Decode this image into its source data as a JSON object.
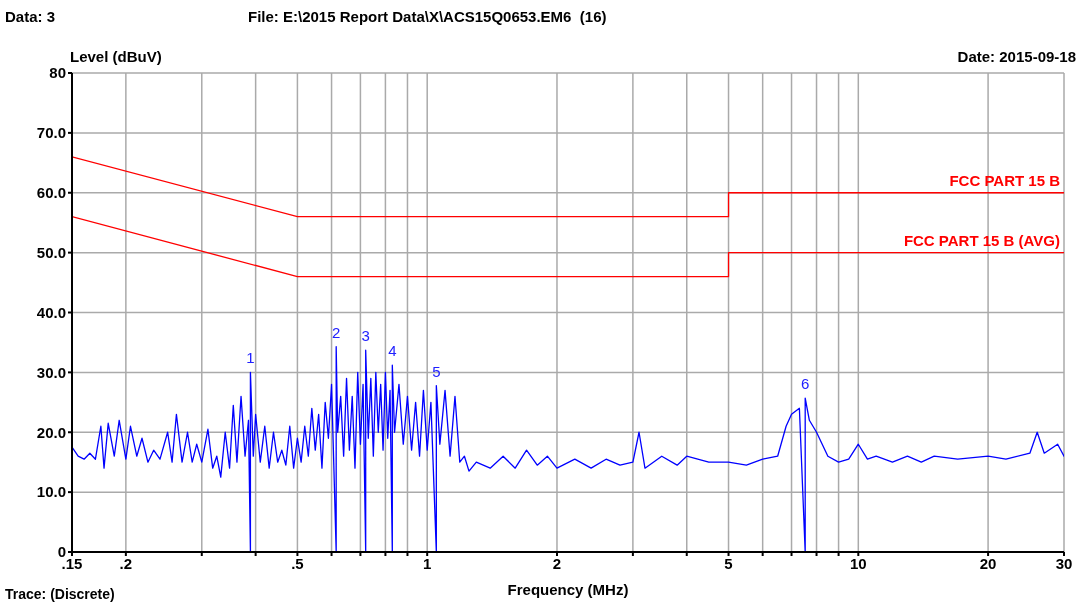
{
  "chart_data": {
    "type": "line",
    "title": "File: E:\\2015 Report Data\\X\\ACS15Q0653.EM6  (16)",
    "xlabel": "Frequency (MHz)",
    "ylabel": "Level (dBuV)",
    "log": "x",
    "grid": true,
    "legend": false,
    "marker": "none",
    "line_style": "solid",
    "xlim": [
      0.15,
      30
    ],
    "xticks": [
      {
        "value": 0.15,
        "label": ".15"
      },
      {
        "value": 0.2,
        "label": ".2"
      },
      {
        "value": 0.3,
        "label": null
      },
      {
        "value": 0.4,
        "label": null
      },
      {
        "value": 0.5,
        "label": ".5"
      },
      {
        "value": 0.6,
        "label": null
      },
      {
        "value": 0.7,
        "label": null
      },
      {
        "value": 0.8,
        "label": null
      },
      {
        "value": 0.9,
        "label": null
      },
      1,
      2,
      {
        "value": 3,
        "label": null
      },
      {
        "value": 4,
        "label": null
      },
      5,
      {
        "value": 6,
        "label": null
      },
      {
        "value": 7,
        "label": null
      },
      {
        "value": 8,
        "label": null
      },
      {
        "value": 9,
        "label": null
      },
      10,
      20,
      30
    ],
    "ylim": [
      0,
      80
    ],
    "yticks": [
      0,
      {
        "value": 10,
        "label": "10.0"
      },
      {
        "value": 20,
        "label": "20.0"
      },
      {
        "value": 30,
        "label": "30.0"
      },
      {
        "value": 40,
        "label": "40.0"
      },
      {
        "value": 50,
        "label": "50.0"
      },
      {
        "value": 60,
        "label": "60.0"
      },
      {
        "value": 70,
        "label": "70.0"
      },
      80
    ],
    "series": [
      {
        "name": "FCC PART 15 B",
        "color": "#ff0000",
        "x": [
          0.15,
          0.5,
          5,
          5,
          30
        ],
        "values": [
          66,
          56,
          56,
          60,
          60
        ]
      },
      {
        "name": "FCC PART 15 B (AVG)",
        "color": "#ff0000",
        "x": [
          0.15,
          0.5,
          5,
          5,
          30
        ],
        "values": [
          56,
          46,
          46,
          50,
          50
        ]
      },
      {
        "color": "#0000ff",
        "x": [
          0.15,
          0.155,
          0.16,
          0.165,
          0.17,
          0.175,
          0.178,
          0.182,
          0.188,
          0.193,
          0.2,
          0.205,
          0.212,
          0.218,
          0.225,
          0.232,
          0.24,
          0.25,
          0.256,
          0.262,
          0.27,
          0.278,
          0.285,
          0.292,
          0.3,
          0.31,
          0.318,
          0.325,
          0.332,
          0.34,
          0.348,
          0.355,
          0.362,
          0.37,
          0.378,
          0.385,
          0.389,
          0.389,
          0.395,
          0.4,
          0.41,
          0.42,
          0.43,
          0.44,
          0.45,
          0.46,
          0.47,
          0.48,
          0.49,
          0.5,
          0.51,
          0.52,
          0.53,
          0.54,
          0.55,
          0.56,
          0.57,
          0.58,
          0.59,
          0.6,
          0.607,
          0.615,
          0.615,
          0.62,
          0.63,
          0.64,
          0.65,
          0.66,
          0.67,
          0.68,
          0.69,
          0.7,
          0.71,
          0.72,
          0.72,
          0.73,
          0.74,
          0.75,
          0.76,
          0.77,
          0.78,
          0.79,
          0.8,
          0.81,
          0.82,
          0.83,
          0.83,
          0.84,
          0.86,
          0.88,
          0.9,
          0.92,
          0.94,
          0.96,
          0.98,
          1.0,
          1.02,
          1.05,
          1.05,
          1.07,
          1.1,
          1.13,
          1.16,
          1.19,
          1.22,
          1.25,
          1.3,
          1.4,
          1.5,
          1.6,
          1.7,
          1.8,
          1.9,
          2.0,
          2.2,
          2.4,
          2.6,
          2.8,
          3.0,
          3.1,
          3.2,
          3.5,
          3.8,
          4.0,
          4.5,
          5.0,
          5.5,
          6.0,
          6.5,
          6.8,
          7.0,
          7.3,
          7.53,
          7.53,
          7.7,
          8.0,
          8.5,
          9.0,
          9.5,
          10,
          10.5,
          11,
          12,
          13,
          14,
          15,
          17,
          20,
          22,
          25,
          26,
          27,
          29,
          30
        ],
        "values": [
          17.5,
          16,
          15.5,
          16.5,
          15.5,
          21,
          14,
          21.5,
          16,
          22,
          15.5,
          21,
          16,
          19,
          15,
          17,
          15.5,
          20,
          15,
          23,
          15,
          20,
          15,
          18,
          15,
          20.5,
          14,
          16,
          12.5,
          20,
          14,
          24.5,
          15,
          26,
          16,
          22,
          0,
          30,
          16,
          23,
          15,
          21,
          14,
          20,
          15,
          17,
          14.5,
          21,
          14,
          19,
          15,
          21,
          16,
          24,
          17,
          23,
          14,
          25,
          19,
          28,
          15,
          0,
          34.3,
          20,
          26,
          16,
          29,
          17,
          26,
          14,
          30,
          18,
          28,
          0,
          33.7,
          19,
          29,
          16,
          30,
          20,
          28,
          17,
          30,
          19,
          27,
          0,
          31.2,
          20,
          28,
          18,
          26,
          17,
          25,
          16,
          27,
          17,
          25,
          0,
          27.8,
          18,
          27,
          16,
          26,
          15,
          16,
          13.5,
          15,
          14,
          16,
          14,
          17,
          14.5,
          16,
          14,
          15.5,
          14,
          15.5,
          14.5,
          15,
          20,
          14,
          16,
          14.5,
          16,
          15,
          15,
          14.5,
          15.5,
          16,
          21,
          23,
          24,
          0,
          25.7,
          22,
          20,
          16,
          15,
          15.5,
          18,
          15.5,
          16,
          15,
          16,
          15,
          16,
          15.5,
          16,
          15.5,
          16.5,
          20,
          16.5,
          18,
          16
        ]
      }
    ],
    "annotations": [
      "Data: 3",
      "Date: 2015-09-18",
      "Trace: (Discrete)",
      {
        "text": "1",
        "x": 0.389,
        "y": 30
      },
      {
        "text": "2",
        "x": 0.615,
        "y": 34.3
      },
      {
        "text": "3",
        "x": 0.72,
        "y": 33.7
      },
      {
        "text": "4",
        "x": 0.83,
        "y": 31.2
      },
      {
        "text": "5",
        "x": 1.05,
        "y": 27.8
      },
      {
        "text": "6",
        "x": 7.53,
        "y": 25.7
      }
    ]
  }
}
